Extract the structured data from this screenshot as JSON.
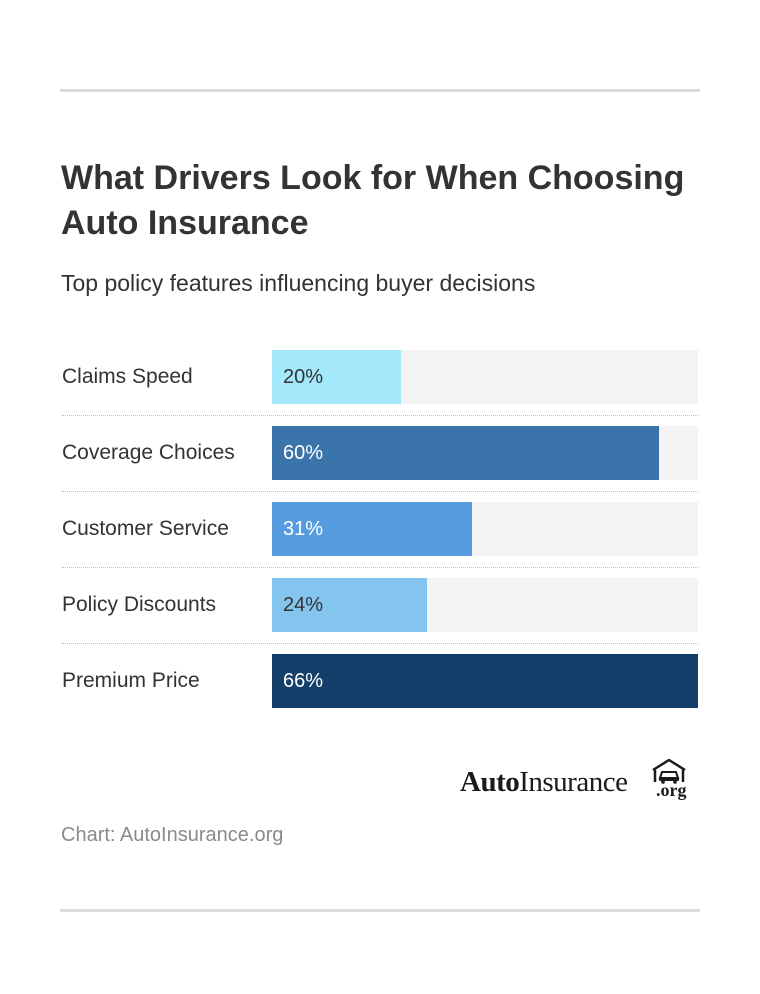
{
  "title": "What Drivers Look for When Choosing Auto Insurance",
  "subtitle": "Top policy features influencing buyer decisions",
  "source": "Chart: AutoInsurance.org",
  "logo": {
    "auto": "Auto",
    "insurance": "Insurance",
    "tld": ".org"
  },
  "icons": {
    "logo": "car-garage-icon"
  },
  "chart_data": {
    "type": "bar",
    "orientation": "horizontal",
    "categories": [
      "Claims Speed",
      "Coverage Choices",
      "Customer Service",
      "Policy Discounts",
      "Premium Price"
    ],
    "values": [
      20,
      60,
      31,
      24,
      66
    ],
    "value_labels": [
      "20%",
      "60%",
      "31%",
      "24%",
      "66%"
    ],
    "xlim": [
      0,
      66
    ],
    "colors": [
      "#a4e8fc",
      "#3b74ab",
      "#579cdf",
      "#84c5f0",
      "#153f6b"
    ],
    "label_colors": [
      "#333333",
      "#ffffff",
      "#ffffff",
      "#333333",
      "#ffffff"
    ],
    "track_color": "#f3f3f3",
    "title": "What Drivers Look for When Choosing Auto Insurance",
    "subtitle": "Top policy features influencing buyer decisions",
    "grid": false,
    "legend": "none"
  }
}
